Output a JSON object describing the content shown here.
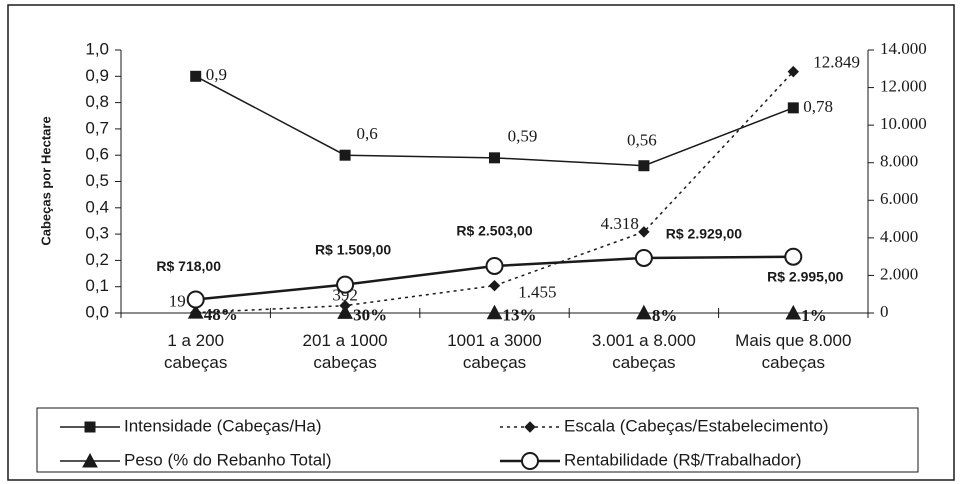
{
  "chart_data": {
    "type": "line",
    "y_label": "Cabeças por Hectare",
    "categories": [
      "1 a 200\ncabeças",
      "201 a 1000\ncabeças",
      "1001 a 3000\ncabeças",
      "3.001 a 8.000\ncabeças",
      "Mais que 8.000\ncabeças"
    ],
    "ylim": [
      0,
      1.0
    ],
    "yticks": [
      {
        "value": 0,
        "label": "0,0"
      },
      {
        "value": 0.1,
        "label": "0,1"
      },
      {
        "value": 0.2,
        "label": "0,2"
      },
      {
        "value": 0.3,
        "label": "0,3"
      },
      {
        "value": 0.4,
        "label": "0,4"
      },
      {
        "value": 0.5,
        "label": "0,5"
      },
      {
        "value": 0.6,
        "label": "0,6"
      },
      {
        "value": 0.7,
        "label": "0,7"
      },
      {
        "value": 0.8,
        "label": "0,8"
      },
      {
        "value": 0.9,
        "label": "0,9"
      },
      {
        "value": 1.0,
        "label": "1,0"
      }
    ],
    "y2lim": [
      0,
      14000
    ],
    "y2ticks": [
      0,
      {
        "value": 2000,
        "label": "2.000"
      },
      {
        "value": 4000,
        "label": "4.000"
      },
      {
        "value": 6000,
        "label": "6.000"
      },
      {
        "value": 8000,
        "label": "8.000"
      },
      {
        "value": 10000,
        "label": "10.000"
      },
      {
        "value": 12000,
        "label": "12.000"
      },
      {
        "value": 14000,
        "label": "14.000"
      }
    ],
    "legend": "bottom",
    "series": [
      {
        "name": "Intensidade (Cabeças/Ha)",
        "color": "#1a1a1a",
        "marker": "square",
        "dash": false,
        "axis": "y",
        "values": [
          0.9,
          0.6,
          0.59,
          0.56,
          0.78
        ],
        "value_labels": [
          "0,9",
          "0,6",
          "0,59",
          "0,56",
          "0,78"
        ]
      },
      {
        "name": "Escala (Cabeças/Estabelecimento)",
        "color": "#1a1a1a",
        "marker": "diamond",
        "dash": true,
        "axis": "y2",
        "values": [
          19,
          392,
          1455,
          4318,
          12849
        ],
        "value_labels": [
          "19",
          "392",
          "1.455",
          "4.318",
          "12.849"
        ]
      },
      {
        "name": "Peso (% do Rebanho Total)",
        "color": "#1a1a1a",
        "marker": "triangle",
        "dash": false,
        "axis": "y2",
        "values": [
          48,
          30,
          13,
          8,
          1
        ],
        "value_labels": [
          "48%",
          "30%",
          "13%",
          "8%",
          "1%"
        ]
      },
      {
        "name": "Rentabilidade (R$/Trabalhador)",
        "color": "#1a1a1a",
        "marker": "circle",
        "dash": false,
        "axis": "y2",
        "values": [
          718,
          1509,
          2503,
          2929,
          2995
        ],
        "value_labels": [
          "R$ 718,00",
          "R$ 1.509,00",
          "R$ 2.503,00",
          "R$ 2.929,00",
          "R$ 2.995,00"
        ]
      }
    ]
  }
}
